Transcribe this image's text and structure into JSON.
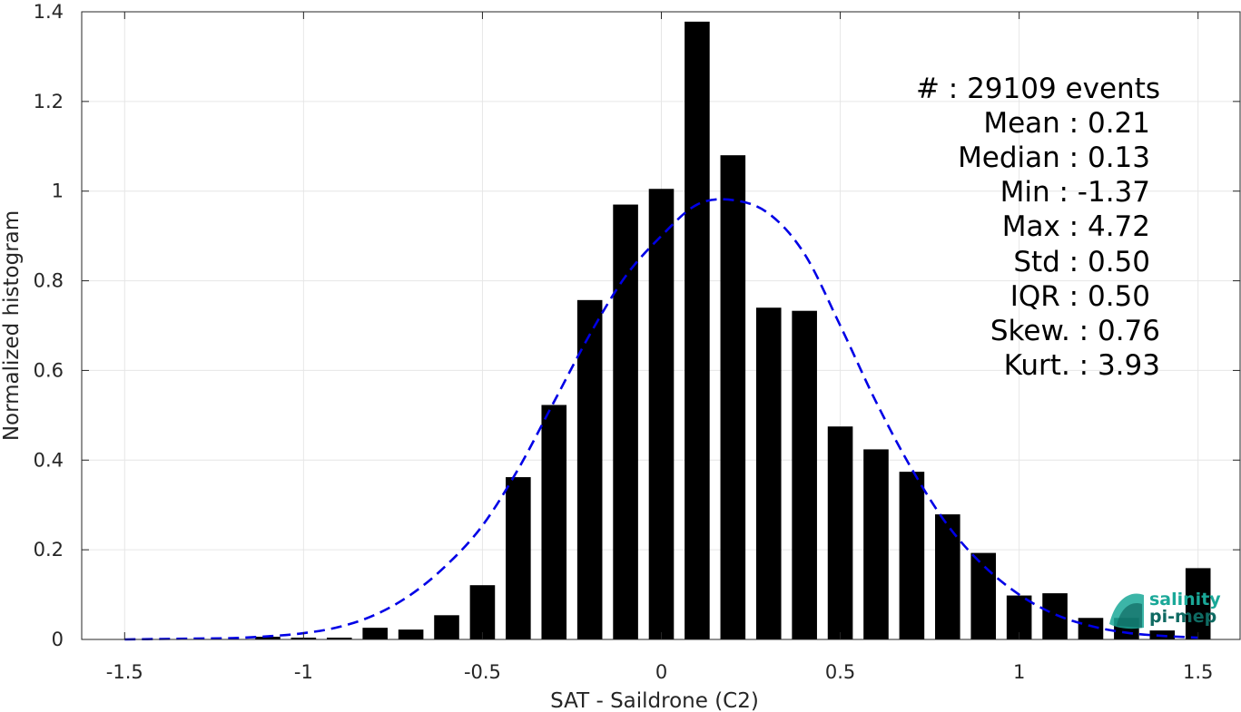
{
  "chart_data": {
    "type": "bar",
    "xlabel": "SAT - Saildrone (C2)",
    "ylabel": "Normalized histogram",
    "xlim": [
      -1.62,
      1.62
    ],
    "ylim": [
      0,
      1.4
    ],
    "xticks": [
      -1.5,
      -1,
      -0.5,
      0,
      0.5,
      1,
      1.5
    ],
    "xtick_labels": [
      "-1.5",
      "-1",
      "-0.5",
      "0",
      "0.5",
      "1",
      "1.5"
    ],
    "yticks": [
      0,
      0.2,
      0.4,
      0.6,
      0.8,
      1,
      1.2,
      1.4
    ],
    "ytick_labels": [
      "0",
      "0.2",
      "0.4",
      "0.6",
      "0.8",
      "1",
      "1.2",
      "1.4"
    ],
    "grid": true,
    "bar_width": 0.07,
    "bars": {
      "x": [
        -1.5,
        -1.4,
        -1.3,
        -1.2,
        -1.1,
        -1.0,
        -0.9,
        -0.8,
        -0.7,
        -0.6,
        -0.5,
        -0.4,
        -0.3,
        -0.2,
        -0.1,
        0.0,
        0.1,
        0.2,
        0.3,
        0.4,
        0.5,
        0.6,
        0.7,
        0.8,
        0.9,
        1.0,
        1.1,
        1.2,
        1.3,
        1.4,
        1.5
      ],
      "values": [
        0,
        0,
        0,
        0,
        0.006,
        0.004,
        0.004,
        0.026,
        0.022,
        0.054,
        0.121,
        0.362,
        0.523,
        0.757,
        0.97,
        1.005,
        1.378,
        1.08,
        0.74,
        0.733,
        0.475,
        0.424,
        0.374,
        0.279,
        0.193,
        0.098,
        0.103,
        0.048,
        0.048,
        0.02,
        0.159
      ],
      "color": "#000000"
    },
    "fit": {
      "style": "dashed",
      "color": "#0000e6",
      "x": [
        -1.5,
        -1.4,
        -1.3,
        -1.2,
        -1.1,
        -1.0,
        -0.9,
        -0.8,
        -0.7,
        -0.6,
        -0.5,
        -0.4,
        -0.3,
        -0.2,
        -0.1,
        0.0,
        0.1,
        0.2,
        0.3,
        0.4,
        0.5,
        0.6,
        0.7,
        0.8,
        0.9,
        1.0,
        1.1,
        1.2,
        1.3,
        1.4,
        1.5
      ],
      "y": [
        0.0,
        0.001,
        0.002,
        0.003,
        0.007,
        0.014,
        0.028,
        0.055,
        0.1,
        0.166,
        0.254,
        0.38,
        0.53,
        0.68,
        0.81,
        0.9,
        0.97,
        0.98,
        0.95,
        0.86,
        0.7,
        0.53,
        0.38,
        0.255,
        0.165,
        0.1,
        0.056,
        0.03,
        0.015,
        0.008,
        0.004
      ]
    },
    "stats": [
      {
        "label": "#  : 29109 events"
      },
      {
        "label": "Mean : 0.21"
      },
      {
        "label": "Median : 0.13"
      },
      {
        "label": "Min : -1.37"
      },
      {
        "label": "Max : 4.72"
      },
      {
        "label": "Std : 0.50"
      },
      {
        "label": "IQR : 0.50"
      },
      {
        "label": "Skew. : 0.76"
      },
      {
        "label": "Kurt. : 3.93"
      }
    ]
  },
  "logo": {
    "line1": "salinity",
    "line2": "pi-mep",
    "primary_color": "#1aa898",
    "secondary_color": "#0f6a62"
  }
}
